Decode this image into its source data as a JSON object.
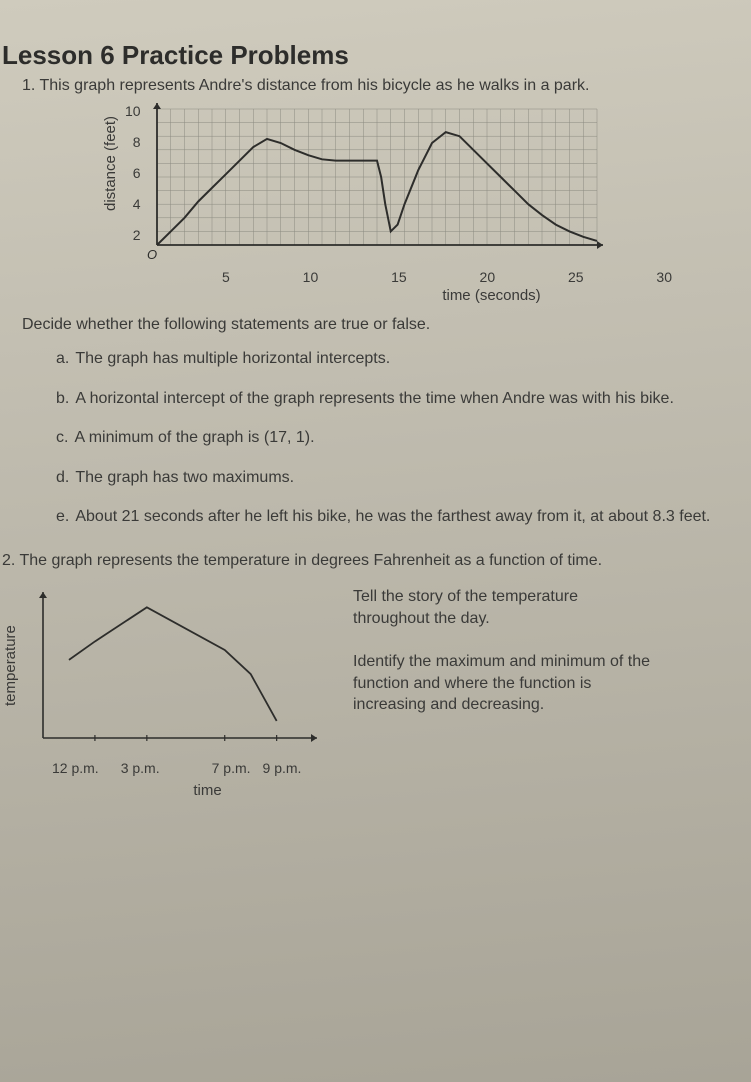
{
  "title": "Lesson 6 Practice Problems",
  "q1": {
    "number": "1.",
    "intro": "This graph represents Andre's distance from his bicycle as he walks in a park.",
    "chart": {
      "type": "line",
      "ylabel": "distance (feet)",
      "xlabel": "time (seconds)",
      "xlim": [
        0,
        32
      ],
      "ylim": [
        0,
        10
      ],
      "ytick_values": [
        10,
        8,
        6,
        4,
        2
      ],
      "xtick_values": [
        5,
        10,
        15,
        20,
        25,
        30
      ],
      "origin_label": "O",
      "grid_color": "#8b8a80",
      "axis_color": "#2d2d2b",
      "line_color": "#2d2d2b",
      "line_width": 2,
      "points": [
        [
          0,
          0
        ],
        [
          1,
          1
        ],
        [
          2,
          2
        ],
        [
          3,
          3.2
        ],
        [
          4,
          4.2
        ],
        [
          5,
          5.2
        ],
        [
          6,
          6.2
        ],
        [
          7,
          7.2
        ],
        [
          8,
          7.8
        ],
        [
          9,
          7.5
        ],
        [
          10,
          7
        ],
        [
          11,
          6.6
        ],
        [
          12,
          6.3
        ],
        [
          13,
          6.2
        ],
        [
          14,
          6.2
        ],
        [
          15,
          6.2
        ],
        [
          16,
          6.2
        ],
        [
          16.3,
          5
        ],
        [
          16.6,
          3
        ],
        [
          17,
          1
        ],
        [
          17.5,
          1.5
        ],
        [
          18,
          3
        ],
        [
          19,
          5.5
        ],
        [
          20,
          7.5
        ],
        [
          21,
          8.3
        ],
        [
          22,
          8
        ],
        [
          23,
          7
        ],
        [
          24,
          6
        ],
        [
          25,
          5
        ],
        [
          26,
          4
        ],
        [
          27,
          3
        ],
        [
          28,
          2.2
        ],
        [
          29,
          1.5
        ],
        [
          30,
          1
        ],
        [
          31,
          0.6
        ],
        [
          32,
          0.3
        ]
      ]
    },
    "decide": "Decide whether the following statements are true or false.",
    "statements": [
      {
        "letter": "a.",
        "text": "The graph has multiple horizontal intercepts."
      },
      {
        "letter": "b.",
        "text": "A horizontal intercept of the graph represents the time when Andre was with his bike."
      },
      {
        "letter": "c.",
        "text": "A minimum of the graph is (17, 1)."
      },
      {
        "letter": "d.",
        "text": "The graph has two maximums."
      },
      {
        "letter": "e.",
        "text": "About 21 seconds after he left his bike, he was the farthest away from it, at about 8.3 feet."
      }
    ]
  },
  "q2": {
    "number": "2.",
    "intro": "The graph represents the temperature in degrees Fahrenheit as a function of time.",
    "prompt1": "Tell the story of the temperature throughout the day.",
    "prompt2": "Identify the maximum and minimum of the function and where the function is increasing and decreasing.",
    "chart": {
      "type": "line",
      "ylabel": "temperature",
      "xlabel": "time",
      "axis_color": "#2d2d2b",
      "line_color": "#2d2d2b",
      "line_width": 1.8,
      "xtick_labels": [
        "12 p.m.",
        "3 p.m.",
        "7 p.m.",
        "9 p.m."
      ],
      "points": [
        [
          0.5,
          0.55
        ],
        [
          1.0,
          0.68
        ],
        [
          2.0,
          0.92
        ],
        [
          3.5,
          0.62
        ],
        [
          4.0,
          0.45
        ],
        [
          4.5,
          0.12
        ]
      ],
      "x_range": 5.2,
      "y_range": 1.0
    }
  }
}
